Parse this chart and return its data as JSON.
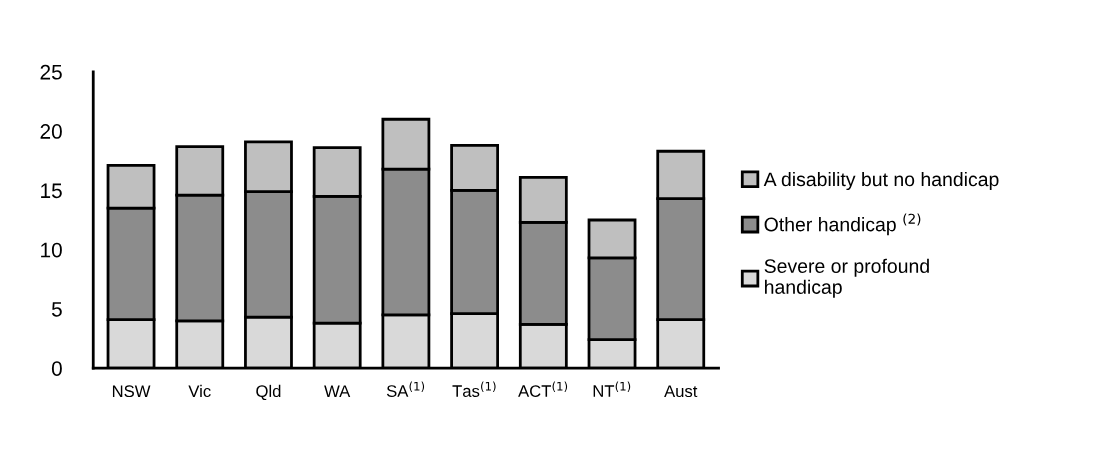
{
  "chart_data": {
    "type": "bar",
    "stacked": true,
    "categories": [
      "NSW",
      "Vic",
      "Qld",
      "WA",
      "SA$^{(1)}$",
      "Tas$^{(1)}$",
      "ACT$^{(1)}$",
      "NT$^{(1)}$",
      "Aust"
    ],
    "series": [
      {
        "name": "Severe or profound\nhandicap",
        "color": "#d9d9d9",
        "values": [
          4.1,
          4.0,
          4.3,
          3.8,
          4.5,
          4.6,
          3.7,
          2.4,
          4.1
        ]
      },
      {
        "name": "Other handicap $^{(2)}$",
        "color": "#8c8c8c",
        "values": [
          9.4,
          10.6,
          10.6,
          10.7,
          12.3,
          10.4,
          8.6,
          6.9,
          10.2
        ]
      },
      {
        "name": "A disability but no handicap",
        "color": "#bfbfbf",
        "values": [
          3.6,
          4.1,
          4.2,
          4.1,
          4.2,
          3.8,
          3.8,
          3.2,
          4.0
        ]
      }
    ],
    "ylim": [
      0,
      25
    ],
    "yticks": [
      0,
      5,
      10,
      15,
      20,
      25
    ],
    "grid": false,
    "legend": "right"
  }
}
